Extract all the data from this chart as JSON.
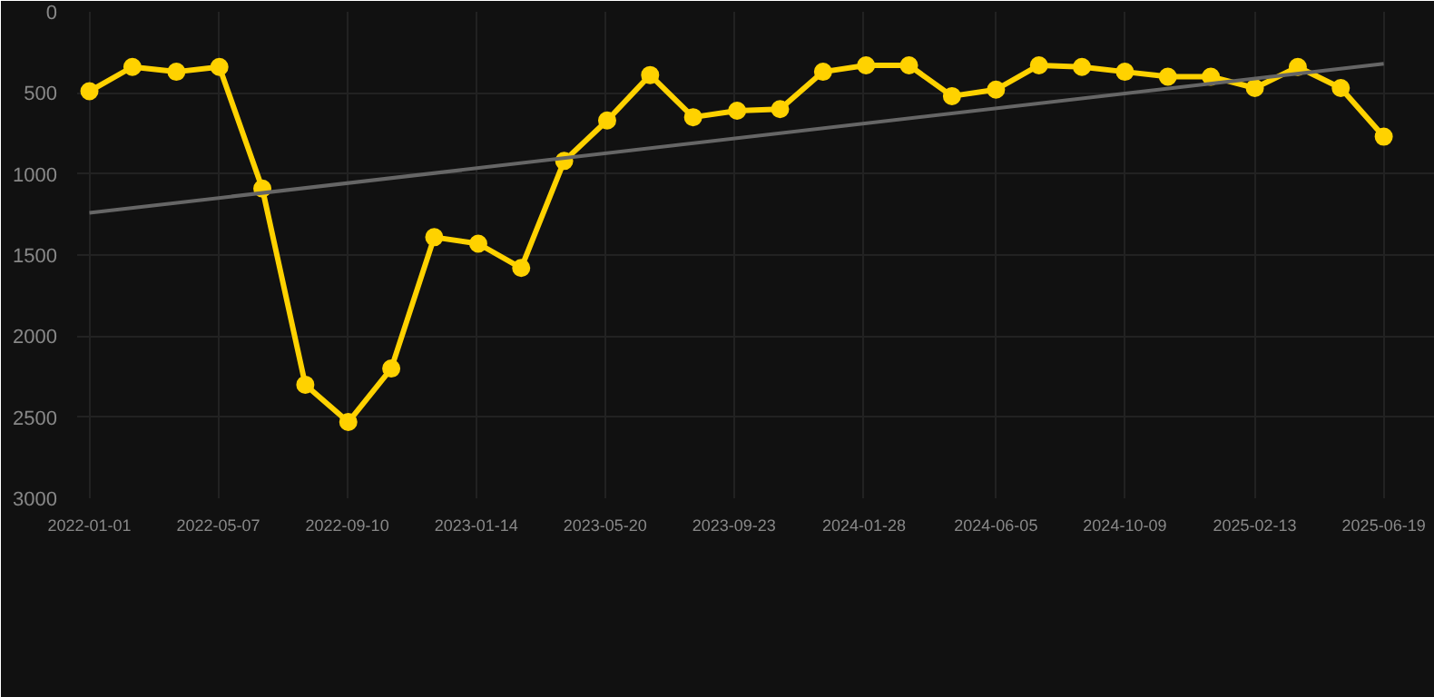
{
  "chart_data": {
    "type": "line",
    "x": [
      "2022-01-01",
      "2022-02-12",
      "2022-03-27",
      "2022-05-08",
      "2022-06-19",
      "2022-07-31",
      "2022-09-11",
      "2022-10-23",
      "2022-12-04",
      "2023-01-16",
      "2023-02-27",
      "2023-04-10",
      "2023-05-22",
      "2023-07-03",
      "2023-08-14",
      "2023-09-26",
      "2023-11-07",
      "2023-12-19",
      "2024-01-30",
      "2024-03-12",
      "2024-04-23",
      "2024-06-05",
      "2024-07-17",
      "2024-08-28",
      "2024-10-09",
      "2024-11-20",
      "2025-01-01",
      "2025-02-13",
      "2025-03-27",
      "2025-05-08",
      "2025-06-19"
    ],
    "series": [
      {
        "color": "#ffd200",
        "marker": "circle",
        "values": [
          490,
          340,
          370,
          340,
          1090,
          2300,
          2530,
          2200,
          1390,
          1430,
          1580,
          920,
          670,
          390,
          650,
          610,
          600,
          370,
          330,
          330,
          520,
          480,
          330,
          340,
          370,
          400,
          400,
          470,
          340,
          470,
          770
        ]
      },
      {
        "type": "line",
        "color": "#666666",
        "marker": "none",
        "x": [
          "2022-01-01",
          "2025-06-19"
        ],
        "values": [
          1240,
          320
        ]
      }
    ],
    "xlim": [
      "2021-12-20",
      "2025-08-08"
    ],
    "xticks": [
      "2022-01-01",
      "2022-05-07",
      "2022-09-10",
      "2023-01-14",
      "2023-05-20",
      "2023-09-23",
      "2024-01-28",
      "2024-06-05",
      "2024-10-09",
      "2025-02-13",
      "2025-06-19"
    ],
    "ylim": [
      3000,
      0
    ],
    "yticks": [
      0,
      500,
      1000,
      1500,
      2000,
      2500,
      3000
    ],
    "grid": true
  }
}
